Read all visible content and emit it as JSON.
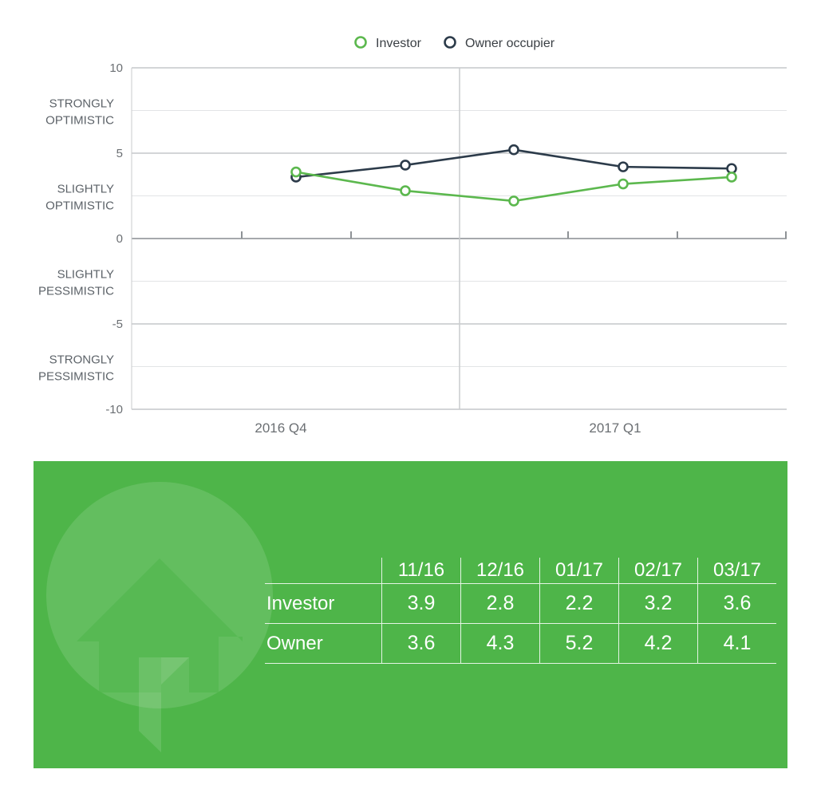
{
  "chart_data": {
    "type": "line",
    "legend": [
      "Investor",
      "Owner occupier"
    ],
    "legend_position": "top-center",
    "x": [
      "11/16",
      "12/16",
      "01/17",
      "02/17",
      "03/17"
    ],
    "x_group_labels": [
      "2016 Q4",
      "2017 Q1"
    ],
    "y_ticks": [
      "10",
      "5",
      "0",
      "-5",
      "-10"
    ],
    "y_category_labels": [
      [
        "STRONGLY",
        "OPTIMISTIC"
      ],
      [
        "SLIGHTLY",
        "OPTIMISTIC"
      ],
      [
        "SLIGHTLY",
        "PESSIMISTIC"
      ],
      [
        "STRONGLY",
        "PESSIMISTIC"
      ]
    ],
    "ylim": [
      -10,
      10
    ],
    "series": [
      {
        "name": "Investor",
        "color": "#5cb84e",
        "values": [
          3.9,
          2.8,
          2.2,
          3.2,
          3.6
        ]
      },
      {
        "name": "Owner occupier",
        "color": "#2c3b4a",
        "values": [
          3.6,
          4.3,
          5.2,
          4.2,
          4.1
        ]
      }
    ],
    "grid": true
  },
  "table": {
    "headers": [
      "11/16",
      "12/16",
      "01/17",
      "02/17",
      "03/17"
    ],
    "rows": [
      {
        "label": "Investor",
        "values": [
          "3.9",
          "2.8",
          "2.2",
          "3.2",
          "3.6"
        ]
      },
      {
        "label": "Owner",
        "values": [
          "3.6",
          "4.3",
          "5.2",
          "4.2",
          "4.1"
        ]
      }
    ]
  },
  "colors": {
    "panel": "#4eb549",
    "investor": "#5cb84e",
    "owner": "#2c3b4a"
  },
  "icons": [
    "house-arrow-logo-icon"
  ]
}
